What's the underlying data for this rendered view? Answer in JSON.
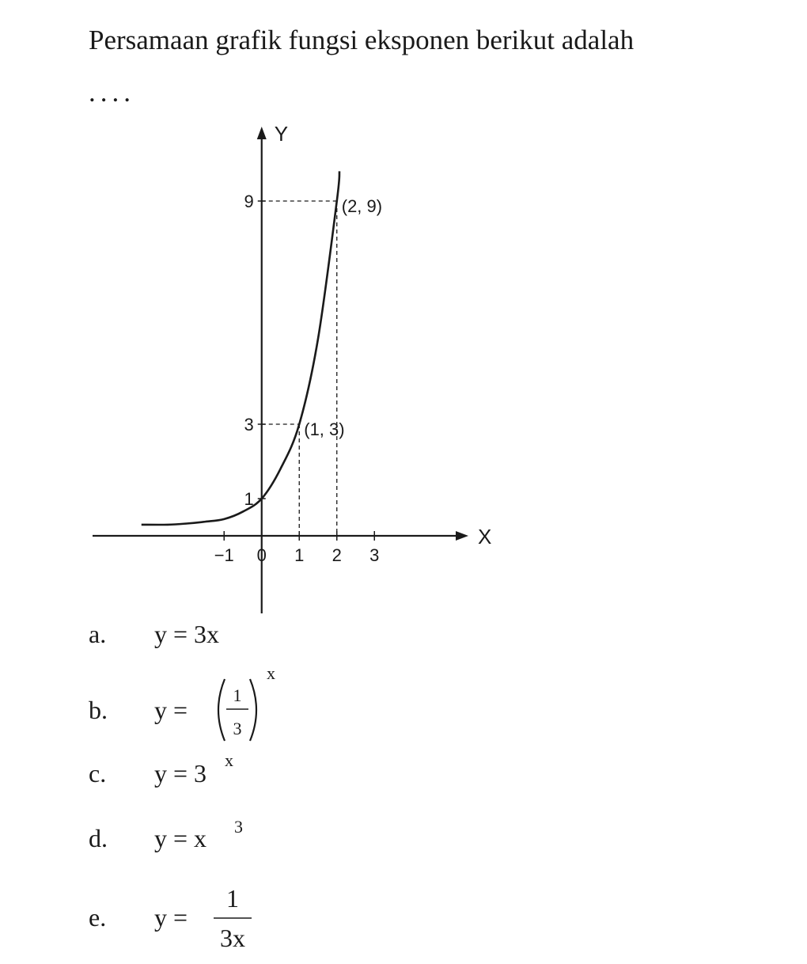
{
  "question": {
    "text": "Persamaan grafik fungsi eksponen berikut adalah",
    "dots": "...."
  },
  "chart_data": {
    "type": "line",
    "x_label": "X",
    "y_label": "Y",
    "xlim": [
      -4.5,
      5.5
    ],
    "ylim": [
      -2,
      11
    ],
    "xticks": [
      {
        "value": -1,
        "label": "−1"
      },
      0,
      1,
      2,
      3
    ],
    "yticks": [
      1,
      3,
      9
    ],
    "series": [
      {
        "color": "#1a1a1a",
        "x": [
          -3.2,
          -2.5,
          -2,
          -1.5,
          -1,
          -0.5,
          0,
          0.5,
          1,
          1.5,
          2,
          2.07
        ],
        "values": [
          0.3,
          0.3,
          0.33,
          0.38,
          0.45,
          0.65,
          1,
          1.8,
          3,
          5.3,
          9,
          9.8
        ]
      }
    ],
    "annotations": [
      {
        "x": 1,
        "y": 3,
        "label": "(1, 3)"
      },
      {
        "x": 2,
        "y": 9,
        "label": "(2, 9)"
      }
    ]
  },
  "options": [
    {
      "letter": "a.",
      "formula": "y = 3x"
    },
    {
      "letter": "b.",
      "lhs": "y =",
      "numerator": "1",
      "denominator": "3",
      "exponent": "x"
    },
    {
      "letter": "c.",
      "base": "y = 3",
      "exponent": "x"
    },
    {
      "letter": "d.",
      "base": "y = x",
      "exponent": "3"
    },
    {
      "letter": "e.",
      "lhs": "y =",
      "numerator": "1",
      "denominator": "3x"
    }
  ]
}
